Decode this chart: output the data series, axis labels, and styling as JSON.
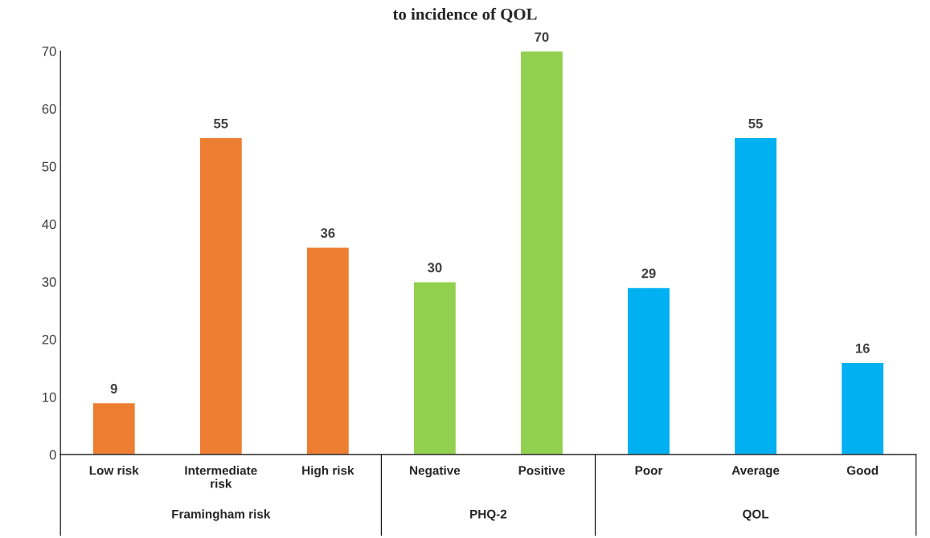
{
  "chart_data": {
    "type": "bar",
    "title": "to incidence of QOL",
    "categories": [
      "Low risk",
      "Intermediate risk",
      "High risk",
      "Negative",
      "Positive",
      "Poor",
      "Average",
      "Good"
    ],
    "values": [
      9,
      55,
      36,
      30,
      70,
      29,
      55,
      16
    ],
    "colors": [
      "#ed7d31",
      "#ed7d31",
      "#ed7d31",
      "#92d050",
      "#92d050",
      "#00b0f0",
      "#00b0f0",
      "#00b0f0"
    ],
    "annotations": [
      "Framingham risk",
      "PHQ-2",
      "QOL"
    ],
    "ylim": [
      0,
      70
    ],
    "yticks": [
      0,
      10,
      20,
      30,
      40,
      50,
      60,
      70
    ],
    "data_labels": true,
    "grid": false
  }
}
